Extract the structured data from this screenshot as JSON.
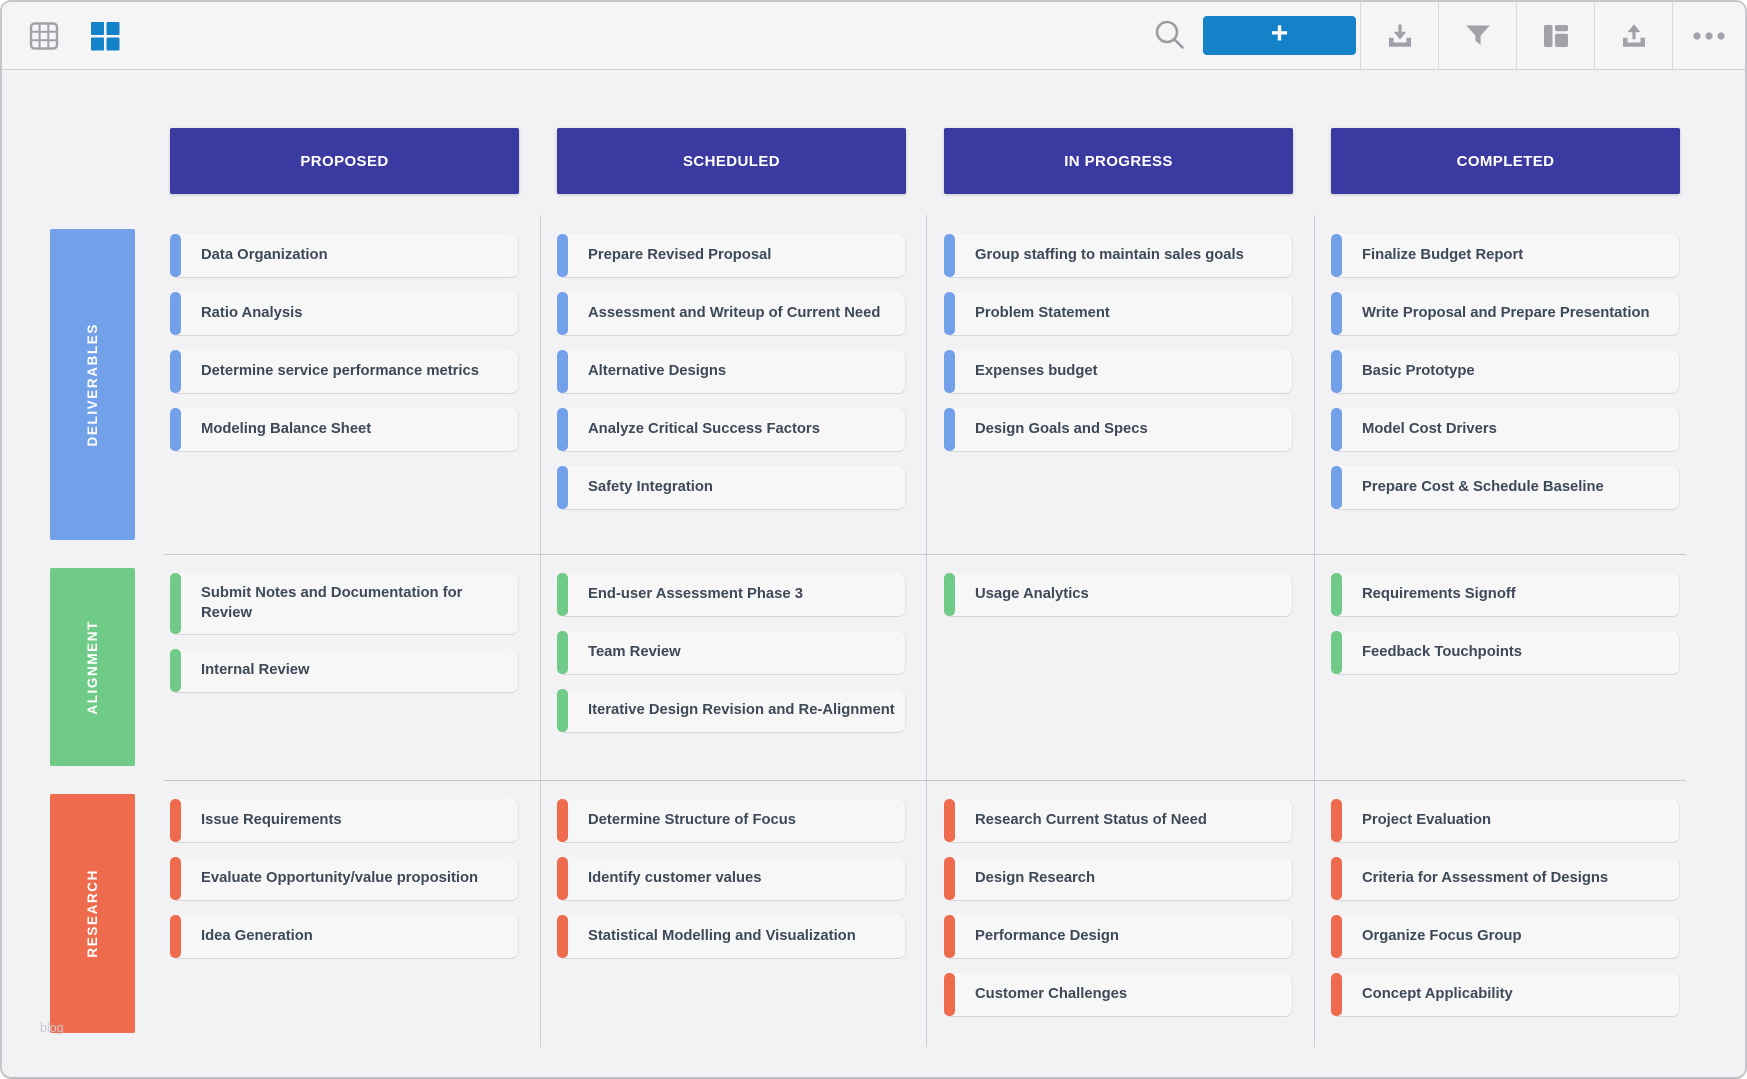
{
  "window": {
    "watermark": "blog"
  },
  "toolbar": {
    "left_buttons": [
      {
        "id": "table-view",
        "icon": "table-grid-icon",
        "active": false,
        "color": "#a1a1a9"
      },
      {
        "id": "card-view",
        "icon": "card-grid-icon",
        "active": true,
        "color": "#1482c8"
      }
    ],
    "search": {
      "icon": "search-icon"
    },
    "add_button": {
      "label": "+",
      "color": "#1482c8"
    },
    "right_buttons": [
      {
        "id": "download",
        "icon": "download-icon"
      },
      {
        "id": "filter",
        "icon": "filter-funnel-icon"
      },
      {
        "id": "layout",
        "icon": "layout-columns-icon"
      },
      {
        "id": "upload",
        "icon": "upload-icon"
      },
      {
        "id": "more",
        "icon": "ellipsis-icon"
      }
    ],
    "icon_color": "#a1a1a9"
  },
  "board": {
    "header_color": "#3a3aa0",
    "columns": [
      {
        "label": "PROPOSED"
      },
      {
        "label": "SCHEDULED"
      },
      {
        "label": "IN PROGRESS"
      },
      {
        "label": "COMPLETED"
      }
    ],
    "lanes": [
      {
        "label": "DELIVERABLES",
        "color": "#72a0e9",
        "cells": [
          [
            "Data Organization",
            "Ratio Analysis",
            "Determine service performance metrics",
            "Modeling Balance Sheet"
          ],
          [
            "Prepare Revised Proposal",
            "Assessment and Writeup of Current Need",
            "Alternative Designs",
            "Analyze Critical Success Factors",
            "Safety Integration"
          ],
          [
            "Group staffing to maintain sales goals",
            "Problem Statement",
            "Expenses budget",
            "Design Goals and Specs"
          ],
          [
            "Finalize Budget Report",
            "Write Proposal and Prepare Presentation",
            "Basic Prototype",
            "Model Cost Drivers",
            "Prepare Cost & Schedule Baseline"
          ]
        ]
      },
      {
        "label": "ALIGNMENT",
        "color": "#70ca88",
        "cells": [
          [
            "Submit Notes and Documentation for Review",
            "Internal Review"
          ],
          [
            "End-user Assessment Phase 3",
            "Team Review",
            "Iterative Design Revision and Re-Alignment"
          ],
          [
            "Usage Analytics"
          ],
          [
            "Requirements Signoff",
            "Feedback Touchpoints"
          ]
        ]
      },
      {
        "label": "RESEARCH",
        "color": "#ee6b4d",
        "cells": [
          [
            "Issue Requirements",
            "Evaluate Opportunity/value proposition",
            "Idea Generation"
          ],
          [
            "Determine Structure of Focus",
            "Identify customer values",
            "Statistical Modelling and Visualization"
          ],
          [
            "Research Current Status of Need",
            "Design Research",
            "Performance Design",
            "Customer Challenges"
          ],
          [
            "Project Evaluation",
            "Criteria for Assessment of Designs",
            "Organize Focus Group",
            "Concept Applicability"
          ]
        ]
      }
    ]
  }
}
